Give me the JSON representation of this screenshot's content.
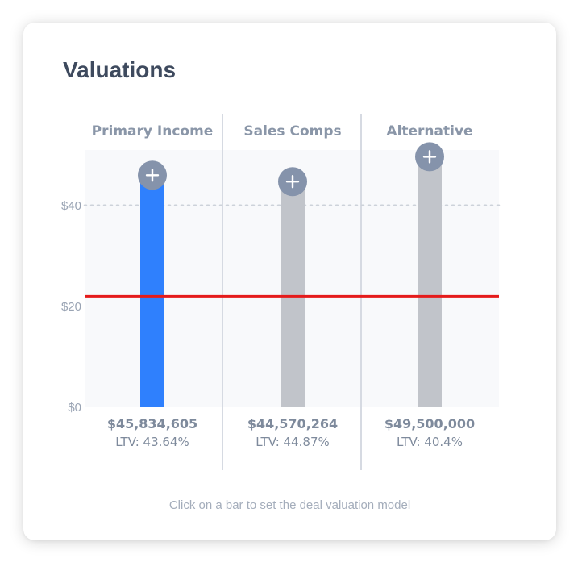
{
  "card": {
    "title": "Valuations",
    "footnote": "Click on a bar to set the deal valuation model"
  },
  "chart_data": {
    "type": "bar",
    "categories": [
      "Primary Income",
      "Sales Comps",
      "Alternative"
    ],
    "values_millions": [
      45.834605,
      44.570264,
      49.5
    ],
    "selected_values_millions": [
      45.834605,
      44.570264,
      49.5
    ],
    "value_labels": [
      "$45,834,605",
      "$44,570,264",
      "$49,500,000"
    ],
    "ltv_labels": [
      "LTV: 43.64%",
      "LTV: 44.87%",
      "LTV: 40.4%"
    ],
    "selected_index": 0,
    "y_ticks": [
      {
        "value": 0,
        "label": "$0"
      },
      {
        "value": 20,
        "label": "$20"
      },
      {
        "value": 40,
        "label": "$40"
      }
    ],
    "ylim": [
      0,
      51
    ],
    "dotted_reference_line": 40,
    "red_reference_line": 22,
    "grid": false,
    "colors": {
      "selected_bar": "#2f80fd",
      "bar": "#c1c4ca",
      "red_line": "#e51b1b",
      "plus_marker": "#8593ab",
      "plot_background": "#f8f9fb",
      "divider": "#d6dae2",
      "dotted_line": "#cdd2da"
    },
    "marker_icon": "plus-icon"
  }
}
